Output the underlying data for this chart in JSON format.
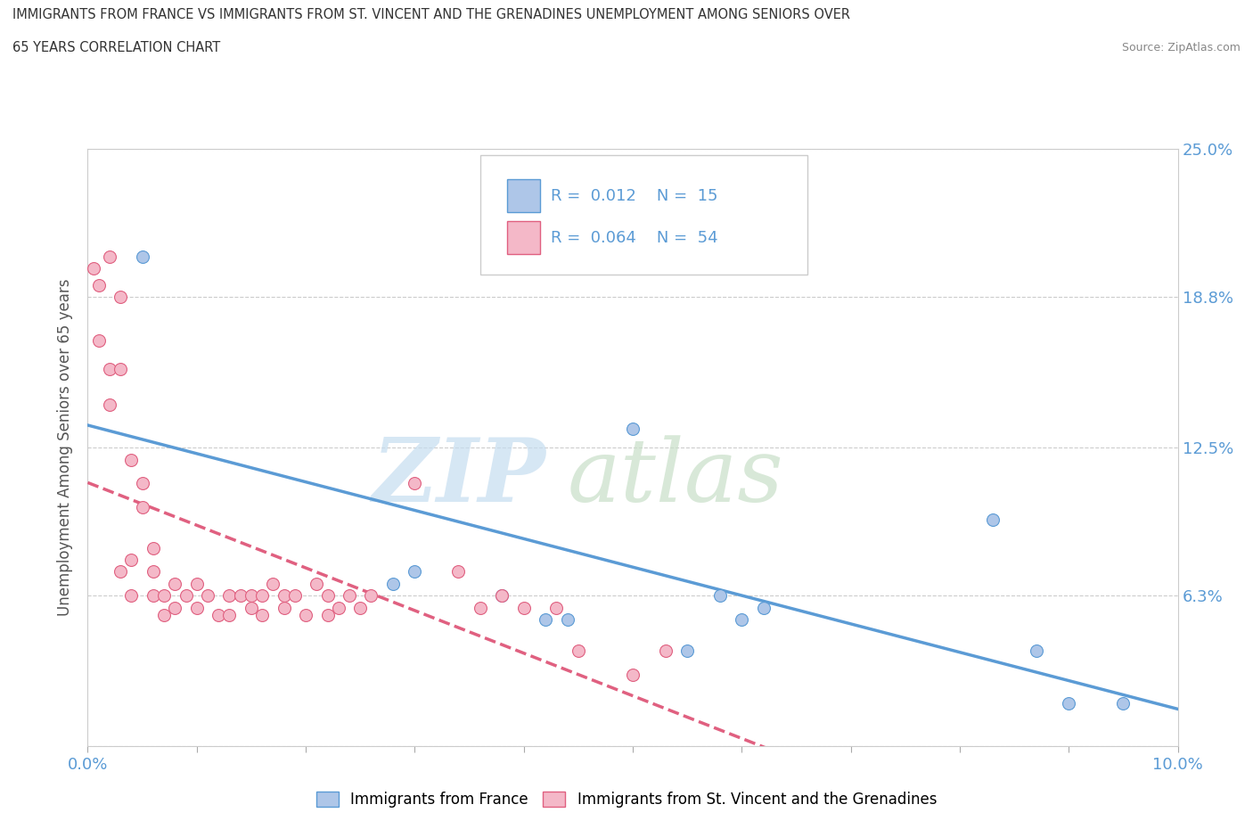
{
  "title_line1": "IMMIGRANTS FROM FRANCE VS IMMIGRANTS FROM ST. VINCENT AND THE GRENADINES UNEMPLOYMENT AMONG SENIORS OVER",
  "title_line2": "65 YEARS CORRELATION CHART",
  "source_text": "Source: ZipAtlas.com",
  "ylabel": "Unemployment Among Seniors over 65 years",
  "xlim": [
    0.0,
    0.1
  ],
  "ylim": [
    0.0,
    0.25
  ],
  "ytick_values": [
    0.0,
    0.063,
    0.125,
    0.188,
    0.25
  ],
  "ytick_labels": [
    "",
    "6.3%",
    "12.5%",
    "18.8%",
    "25.0%"
  ],
  "legend_r_france": "0.012",
  "legend_n_france": "15",
  "legend_r_svg": "0.064",
  "legend_n_svg": "54",
  "france_color": "#aec6e8",
  "svg_color": "#f4b8c8",
  "france_edge_color": "#5b9bd5",
  "svg_edge_color": "#e06080",
  "trend_france_color": "#5b9bd5",
  "trend_svg_color": "#e06080",
  "france_scatter": [
    [
      0.005,
      0.205
    ],
    [
      0.028,
      0.068
    ],
    [
      0.03,
      0.073
    ],
    [
      0.038,
      0.063
    ],
    [
      0.042,
      0.053
    ],
    [
      0.044,
      0.053
    ],
    [
      0.05,
      0.133
    ],
    [
      0.055,
      0.04
    ],
    [
      0.058,
      0.063
    ],
    [
      0.06,
      0.053
    ],
    [
      0.062,
      0.058
    ],
    [
      0.083,
      0.095
    ],
    [
      0.087,
      0.04
    ],
    [
      0.09,
      0.018
    ],
    [
      0.095,
      0.018
    ]
  ],
  "svg_scatter": [
    [
      0.0005,
      0.2
    ],
    [
      0.001,
      0.193
    ],
    [
      0.001,
      0.17
    ],
    [
      0.002,
      0.205
    ],
    [
      0.002,
      0.158
    ],
    [
      0.002,
      0.143
    ],
    [
      0.003,
      0.188
    ],
    [
      0.003,
      0.158
    ],
    [
      0.003,
      0.073
    ],
    [
      0.004,
      0.12
    ],
    [
      0.004,
      0.078
    ],
    [
      0.004,
      0.063
    ],
    [
      0.005,
      0.11
    ],
    [
      0.005,
      0.1
    ],
    [
      0.006,
      0.083
    ],
    [
      0.006,
      0.073
    ],
    [
      0.006,
      0.063
    ],
    [
      0.007,
      0.063
    ],
    [
      0.007,
      0.055
    ],
    [
      0.008,
      0.068
    ],
    [
      0.008,
      0.058
    ],
    [
      0.009,
      0.063
    ],
    [
      0.01,
      0.068
    ],
    [
      0.01,
      0.058
    ],
    [
      0.011,
      0.063
    ],
    [
      0.012,
      0.055
    ],
    [
      0.013,
      0.063
    ],
    [
      0.013,
      0.055
    ],
    [
      0.014,
      0.063
    ],
    [
      0.015,
      0.063
    ],
    [
      0.015,
      0.058
    ],
    [
      0.016,
      0.063
    ],
    [
      0.016,
      0.055
    ],
    [
      0.017,
      0.068
    ],
    [
      0.018,
      0.063
    ],
    [
      0.018,
      0.058
    ],
    [
      0.019,
      0.063
    ],
    [
      0.02,
      0.055
    ],
    [
      0.021,
      0.068
    ],
    [
      0.022,
      0.063
    ],
    [
      0.022,
      0.055
    ],
    [
      0.023,
      0.058
    ],
    [
      0.024,
      0.063
    ],
    [
      0.025,
      0.058
    ],
    [
      0.026,
      0.063
    ],
    [
      0.03,
      0.11
    ],
    [
      0.034,
      0.073
    ],
    [
      0.036,
      0.058
    ],
    [
      0.038,
      0.063
    ],
    [
      0.04,
      0.058
    ],
    [
      0.043,
      0.058
    ],
    [
      0.045,
      0.04
    ],
    [
      0.05,
      0.03
    ],
    [
      0.053,
      0.04
    ]
  ]
}
